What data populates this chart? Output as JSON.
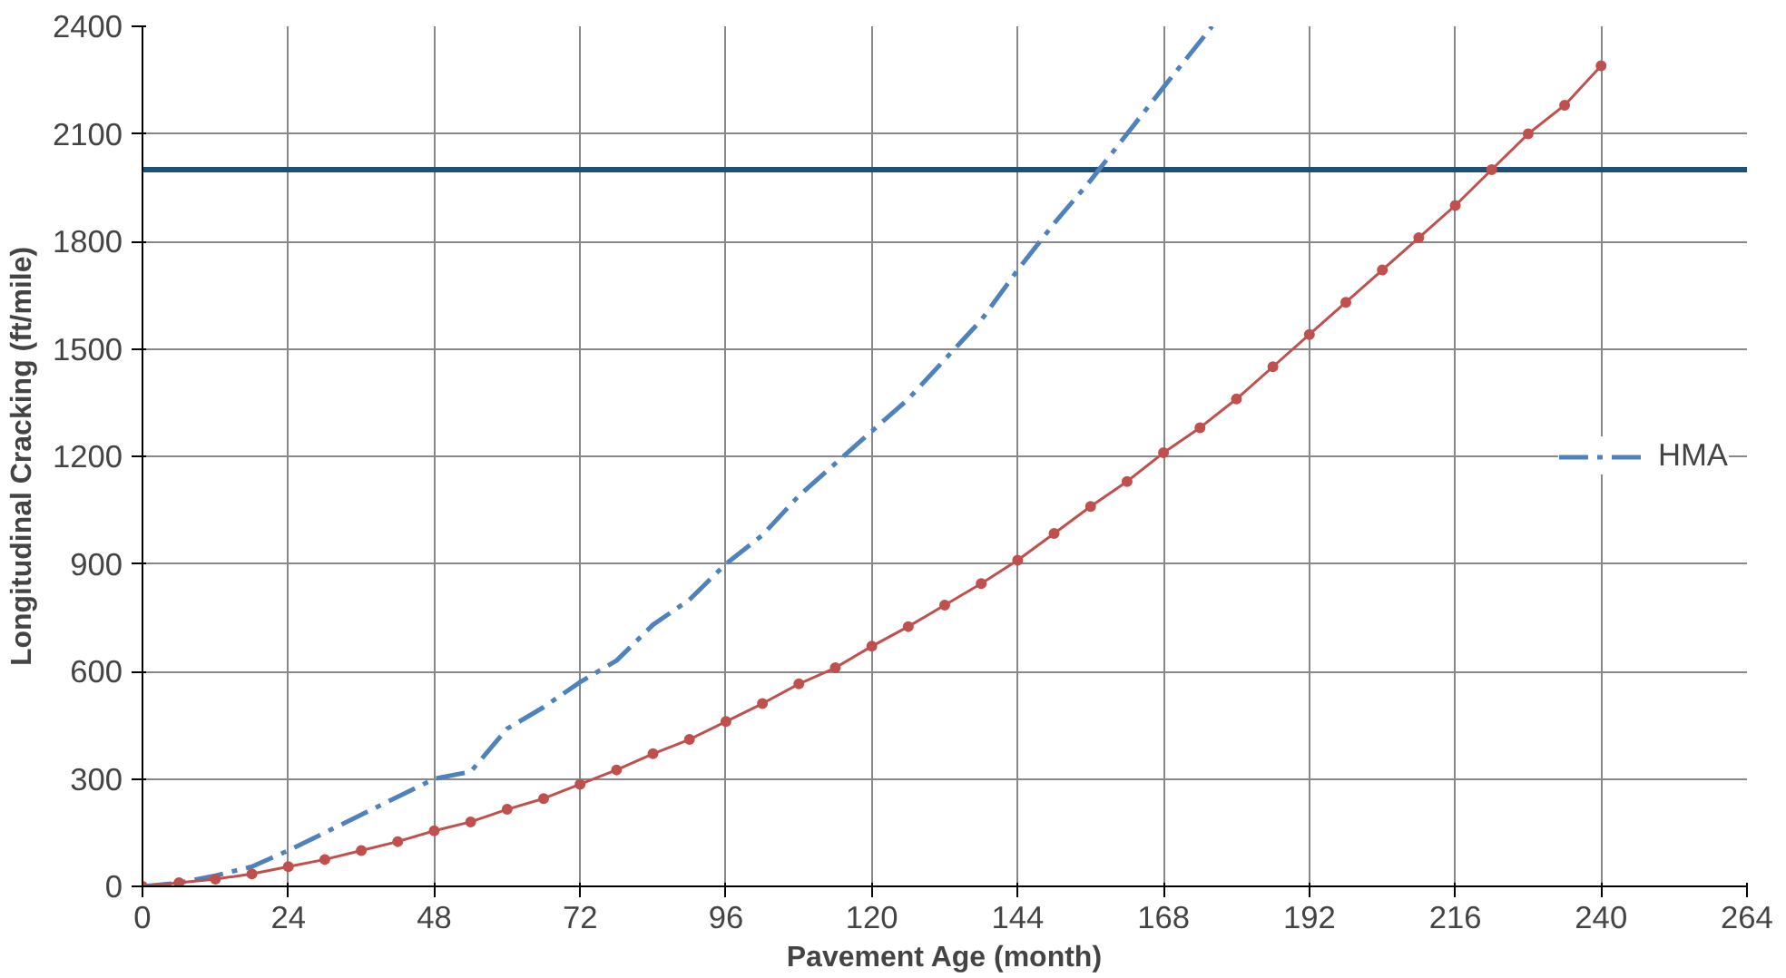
{
  "chart_data": {
    "type": "line",
    "xlabel": "Pavement Age (month)",
    "ylabel": "Longitudinal Cracking (ft/mile)",
    "xlim": [
      0,
      264
    ],
    "ylim": [
      0,
      2400
    ],
    "xticks": [
      0,
      24,
      48,
      72,
      96,
      120,
      144,
      168,
      192,
      216,
      240,
      264
    ],
    "yticks": [
      0,
      300,
      600,
      900,
      1200,
      1500,
      1800,
      2100,
      2400
    ],
    "grid": true,
    "legend": "right",
    "series": [
      {
        "name": "HMA",
        "color": "#4f81bd",
        "line_style": "dashed",
        "marker": "none",
        "x": [
          0,
          6,
          12,
          18,
          24,
          30,
          36,
          42,
          48,
          54,
          60,
          66,
          72,
          78,
          84,
          90,
          96,
          102,
          108,
          114,
          120,
          126,
          132,
          138,
          144,
          150,
          156,
          162,
          168,
          176
        ],
        "values": [
          0,
          10,
          30,
          55,
          100,
          150,
          200,
          250,
          300,
          320,
          440,
          500,
          570,
          630,
          730,
          800,
          900,
          980,
          1090,
          1180,
          1270,
          1360,
          1470,
          1580,
          1720,
          1850,
          1970,
          2100,
          2230,
          2400
        ]
      },
      {
        "color": "#c0504d",
        "line_style": "solid",
        "marker": "circle",
        "x": [
          0,
          6,
          12,
          18,
          24,
          30,
          36,
          42,
          48,
          54,
          60,
          66,
          72,
          78,
          84,
          90,
          96,
          102,
          108,
          114,
          120,
          126,
          132,
          138,
          144,
          150,
          156,
          162,
          168,
          174,
          180,
          186,
          192,
          198,
          204,
          210,
          216,
          222,
          228,
          234,
          240
        ],
        "values": [
          0,
          10,
          20,
          35,
          55,
          75,
          100,
          125,
          155,
          180,
          215,
          245,
          285,
          325,
          370,
          410,
          460,
          510,
          565,
          610,
          670,
          725,
          785,
          845,
          910,
          985,
          1060,
          1130,
          1210,
          1280,
          1360,
          1450,
          1540,
          1630,
          1720,
          1810,
          1900,
          2000,
          2100,
          2180,
          2290
        ]
      }
    ],
    "ref_lines": [
      {
        "axis": "y",
        "value": 2000,
        "color": "#1f4e79",
        "line_style": "solid"
      }
    ]
  }
}
